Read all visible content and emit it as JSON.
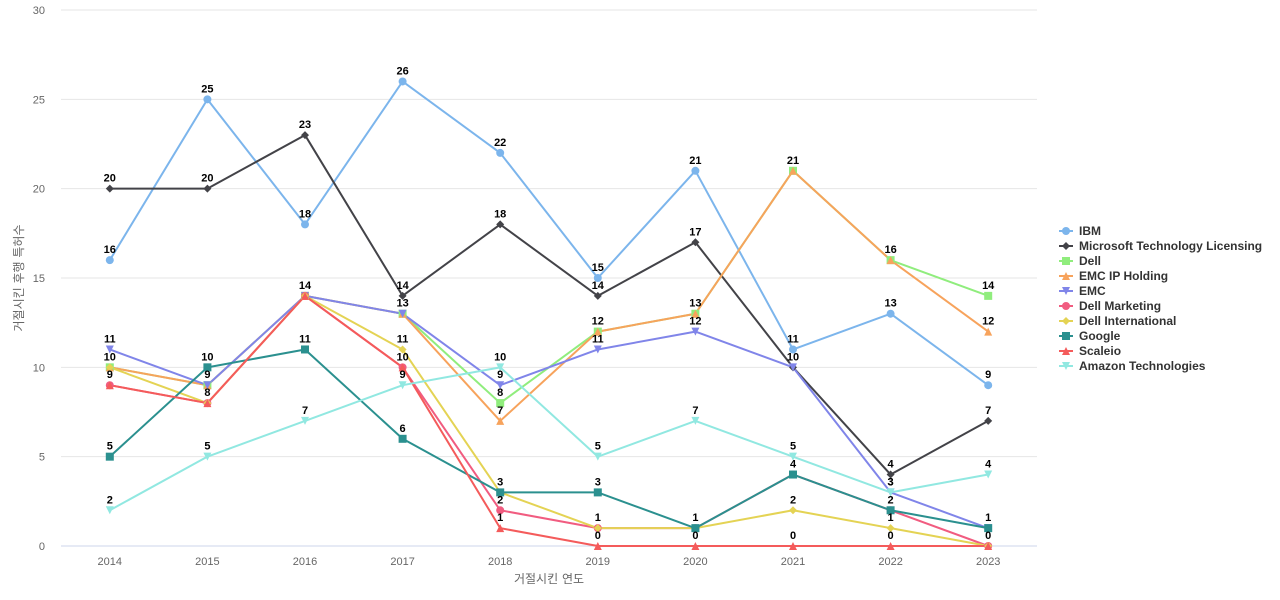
{
  "chart_data": {
    "type": "line",
    "xlabel": "거절시킨 연도",
    "ylabel": "거절시킨 후행 특허수",
    "ylim": [
      0,
      30
    ],
    "yticks": [
      0,
      5,
      10,
      15,
      20,
      25,
      30
    ],
    "categories": [
      "2014",
      "2015",
      "2016",
      "2017",
      "2018",
      "2019",
      "2020",
      "2021",
      "2022",
      "2023"
    ],
    "grid": "horizontal",
    "legend_position": "right",
    "series": [
      {
        "name": "IBM",
        "color": "#7cb5ec",
        "marker": "circle",
        "values": [
          16,
          25,
          18,
          26,
          22,
          15,
          21,
          11,
          13,
          9
        ]
      },
      {
        "name": "Microsoft Technology Licensing",
        "color": "#434348",
        "marker": "diamond",
        "values": [
          20,
          20,
          23,
          14,
          18,
          14,
          17,
          10,
          4,
          7
        ]
      },
      {
        "name": "Dell",
        "color": "#90ed7d",
        "marker": "square",
        "values": [
          10,
          9,
          14,
          13,
          8,
          12,
          13,
          21,
          16,
          14
        ]
      },
      {
        "name": "EMC IP Holding",
        "color": "#f7a35c",
        "marker": "triangle",
        "values": [
          10,
          9,
          14,
          13,
          7,
          12,
          13,
          21,
          16,
          12
        ]
      },
      {
        "name": "EMC",
        "color": "#8085e9",
        "marker": "triangle-down",
        "values": [
          11,
          9,
          14,
          13,
          9,
          11,
          12,
          10,
          3,
          1
        ]
      },
      {
        "name": "Dell Marketing",
        "color": "#f15c80",
        "marker": "circle",
        "values": [
          9,
          8,
          14,
          10,
          2,
          1,
          1,
          4,
          2,
          0
        ]
      },
      {
        "name": "Dell International",
        "color": "#e4d354",
        "marker": "diamond",
        "values": [
          10,
          8,
          14,
          11,
          3,
          1,
          1,
          2,
          1,
          0
        ]
      },
      {
        "name": "Google",
        "color": "#2b908f",
        "marker": "square",
        "values": [
          5,
          10,
          11,
          6,
          3,
          3,
          1,
          4,
          2,
          1
        ]
      },
      {
        "name": "Scaleio",
        "color": "#f45b5b",
        "marker": "triangle",
        "values": [
          9,
          8,
          14,
          10,
          1,
          0,
          0,
          0,
          0,
          0
        ]
      },
      {
        "name": "Amazon Technologies",
        "color": "#91e8e1",
        "marker": "triangle-down",
        "values": [
          2,
          5,
          7,
          9,
          10,
          5,
          7,
          5,
          3,
          4
        ]
      }
    ],
    "data_labels": [
      {
        "series": 0,
        "index": 0,
        "text": "16"
      },
      {
        "series": 0,
        "index": 1,
        "text": "25"
      },
      {
        "series": 0,
        "index": 2,
        "text": "18"
      },
      {
        "series": 0,
        "index": 3,
        "text": "26"
      },
      {
        "series": 0,
        "index": 4,
        "text": "22"
      },
      {
        "series": 0,
        "index": 5,
        "text": "15"
      },
      {
        "series": 0,
        "index": 6,
        "text": "21"
      },
      {
        "series": 0,
        "index": 7,
        "text": "11"
      },
      {
        "series": 0,
        "index": 8,
        "text": "13"
      },
      {
        "series": 0,
        "index": 9,
        "text": "9"
      },
      {
        "series": 1,
        "index": 0,
        "text": "20"
      },
      {
        "series": 1,
        "index": 1,
        "text": "20"
      },
      {
        "series": 1,
        "index": 2,
        "text": "23"
      },
      {
        "series": 1,
        "index": 3,
        "text": "14"
      },
      {
        "series": 1,
        "index": 4,
        "text": "18"
      },
      {
        "series": 1,
        "index": 5,
        "text": "14"
      },
      {
        "series": 1,
        "index": 6,
        "text": "17"
      },
      {
        "series": 1,
        "index": 7,
        "text": "10"
      },
      {
        "series": 1,
        "index": 8,
        "text": "4"
      },
      {
        "series": 1,
        "index": 9,
        "text": "7"
      },
      {
        "series": 2,
        "index": 0,
        "text": "10"
      },
      {
        "series": 2,
        "index": 1,
        "text": "9"
      },
      {
        "series": 2,
        "index": 2,
        "text": "14"
      },
      {
        "series": 2,
        "index": 3,
        "text": "13"
      },
      {
        "series": 2,
        "index": 4,
        "text": "8"
      },
      {
        "series": 2,
        "index": 5,
        "text": "12"
      },
      {
        "series": 2,
        "index": 6,
        "text": "13"
      },
      {
        "series": 2,
        "index": 7,
        "text": "21"
      },
      {
        "series": 2,
        "index": 8,
        "text": "16"
      },
      {
        "series": 2,
        "index": 9,
        "text": "14"
      },
      {
        "series": 3,
        "index": 4,
        "text": "7"
      },
      {
        "series": 3,
        "index": 9,
        "text": "12"
      },
      {
        "series": 4,
        "index": 0,
        "text": "11"
      },
      {
        "series": 4,
        "index": 4,
        "text": "9"
      },
      {
        "series": 4,
        "index": 5,
        "text": "11"
      },
      {
        "series": 4,
        "index": 6,
        "text": "12"
      },
      {
        "series": 4,
        "index": 8,
        "text": "3"
      },
      {
        "series": 5,
        "index": 4,
        "text": "2"
      },
      {
        "series": 5,
        "index": 5,
        "text": "1"
      },
      {
        "series": 5,
        "index": 6,
        "text": "1"
      },
      {
        "series": 5,
        "index": 7,
        "text": "4"
      },
      {
        "series": 5,
        "index": 8,
        "text": "2"
      },
      {
        "series": 6,
        "index": 3,
        "text": "11"
      },
      {
        "series": 6,
        "index": 4,
        "text": "3"
      },
      {
        "series": 6,
        "index": 7,
        "text": "2"
      },
      {
        "series": 6,
        "index": 8,
        "text": "1"
      },
      {
        "series": 7,
        "index": 0,
        "text": "5"
      },
      {
        "series": 7,
        "index": 1,
        "text": "10"
      },
      {
        "series": 7,
        "index": 2,
        "text": "11"
      },
      {
        "series": 7,
        "index": 3,
        "text": "6"
      },
      {
        "series": 7,
        "index": 5,
        "text": "3"
      },
      {
        "series": 7,
        "index": 9,
        "text": "1"
      },
      {
        "series": 8,
        "index": 0,
        "text": "9"
      },
      {
        "series": 8,
        "index": 1,
        "text": "8"
      },
      {
        "series": 8,
        "index": 3,
        "text": "10"
      },
      {
        "series": 8,
        "index": 4,
        "text": "1"
      },
      {
        "series": 8,
        "index": 5,
        "text": "0"
      },
      {
        "series": 8,
        "index": 6,
        "text": "0"
      },
      {
        "series": 8,
        "index": 7,
        "text": "0"
      },
      {
        "series": 8,
        "index": 8,
        "text": "0"
      },
      {
        "series": 8,
        "index": 9,
        "text": "0"
      },
      {
        "series": 9,
        "index": 0,
        "text": "2"
      },
      {
        "series": 9,
        "index": 1,
        "text": "5"
      },
      {
        "series": 9,
        "index": 2,
        "text": "7"
      },
      {
        "series": 9,
        "index": 3,
        "text": "9"
      },
      {
        "series": 9,
        "index": 4,
        "text": "10"
      },
      {
        "series": 9,
        "index": 5,
        "text": "5"
      },
      {
        "series": 9,
        "index": 6,
        "text": "7"
      },
      {
        "series": 9,
        "index": 7,
        "text": "5"
      },
      {
        "series": 9,
        "index": 8,
        "text": "3"
      },
      {
        "series": 9,
        "index": 9,
        "text": "4"
      }
    ]
  }
}
